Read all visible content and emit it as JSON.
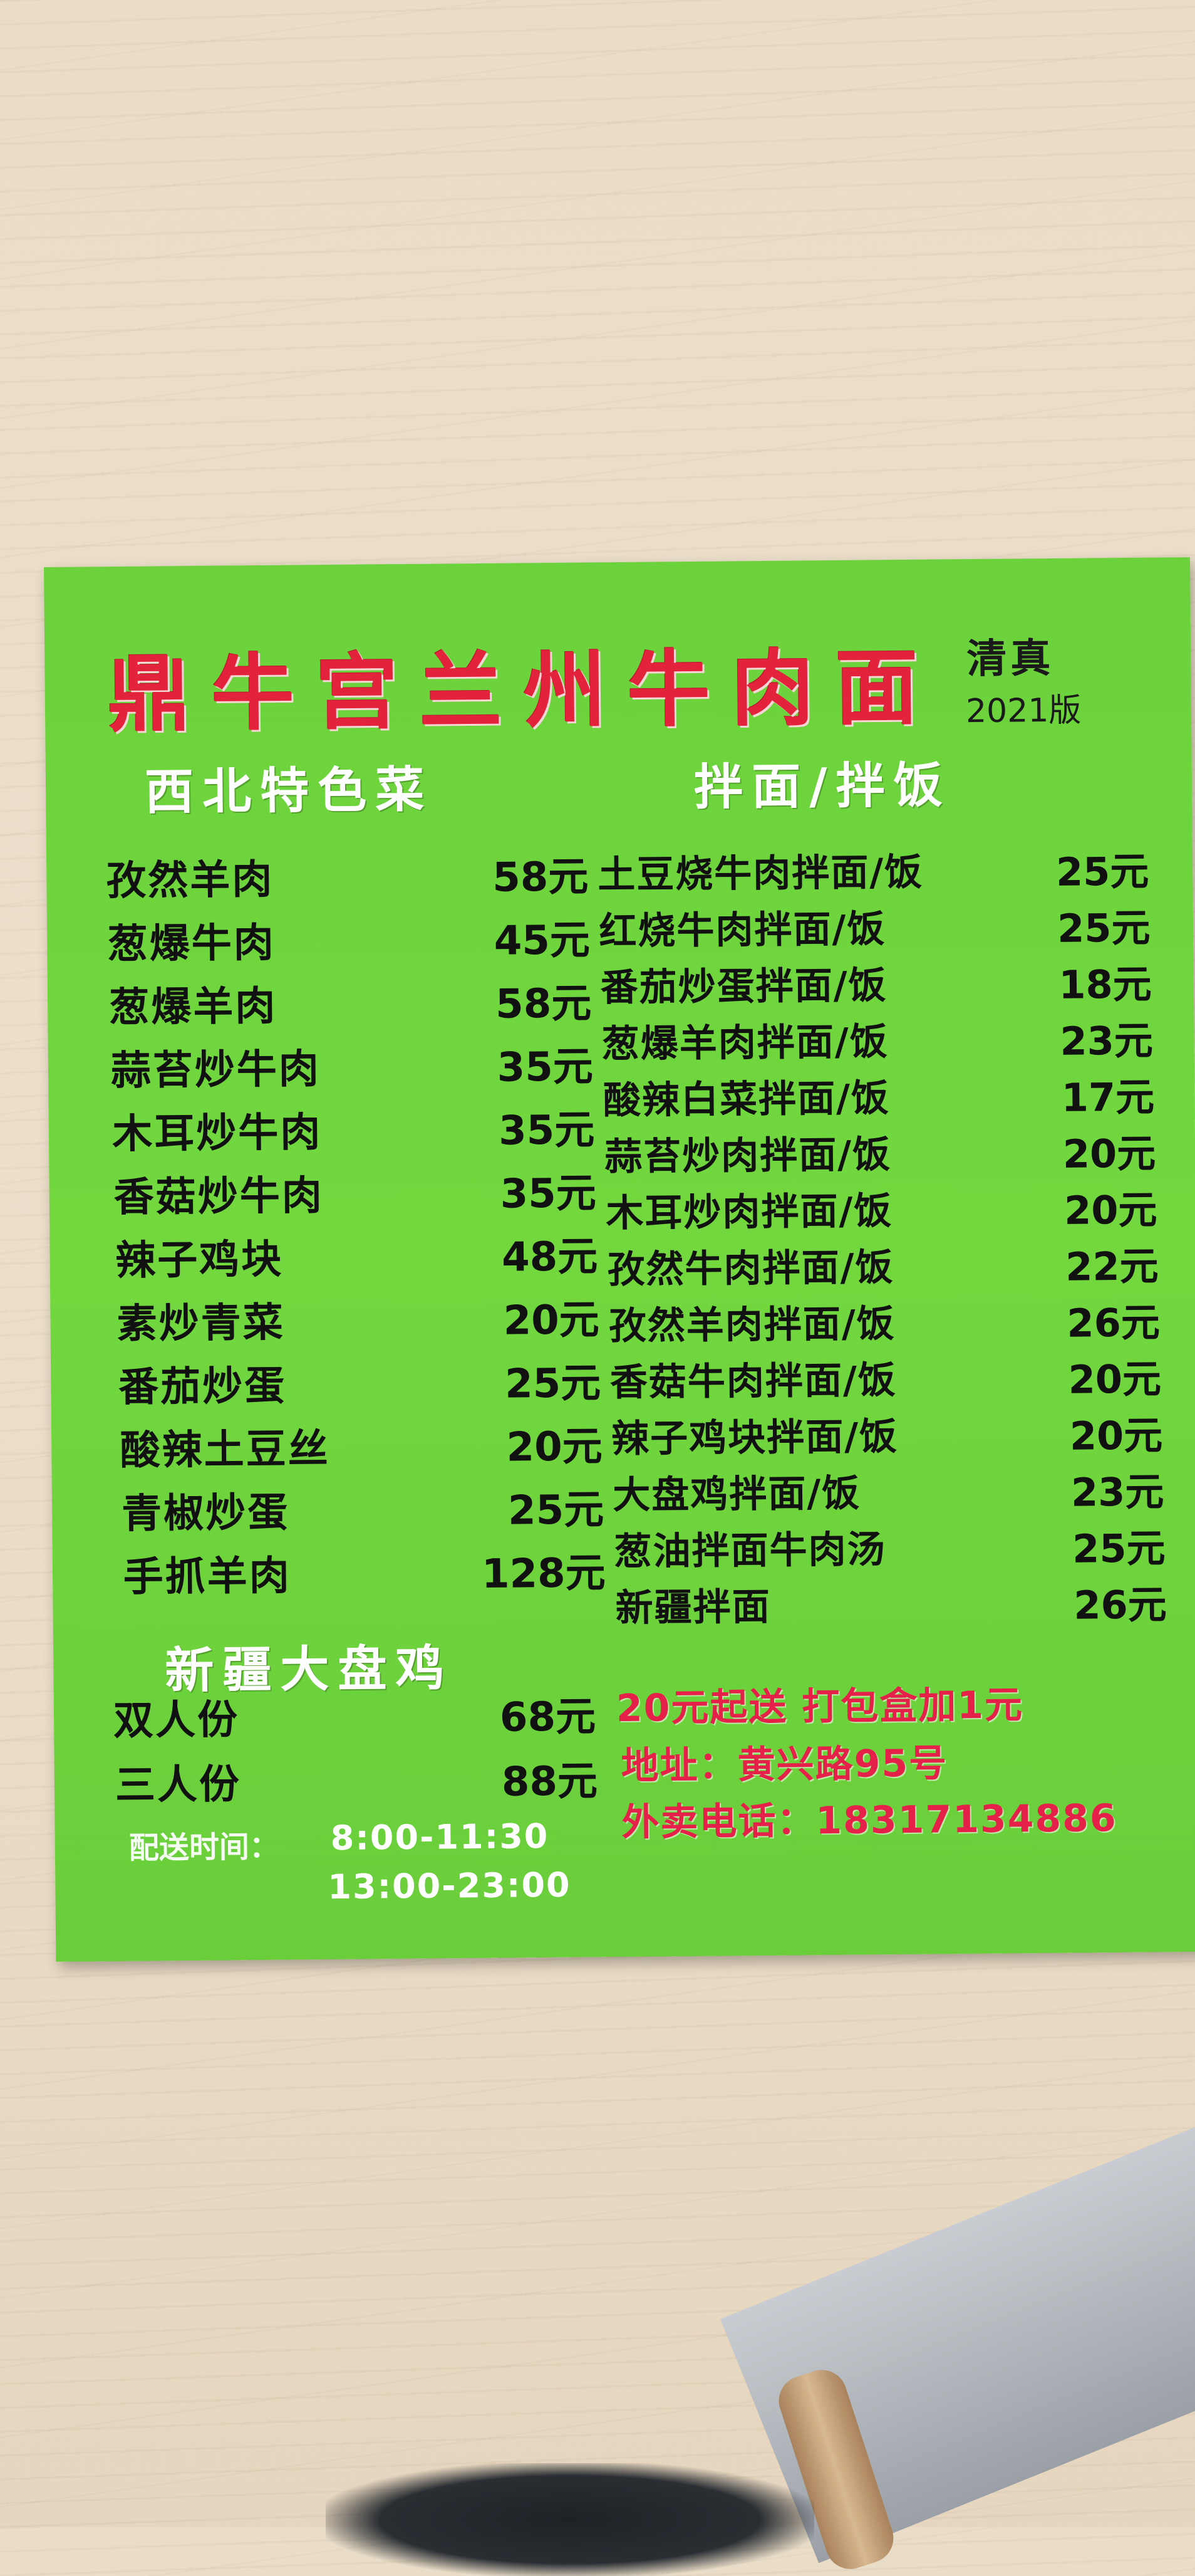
{
  "header": {
    "shop_name": "鼎牛宫兰州牛肉面",
    "halal": "清真",
    "edition": "2021版"
  },
  "left_section": {
    "title": "西北特色菜",
    "items": [
      {
        "name": "孜然羊肉",
        "price": "58元"
      },
      {
        "name": "葱爆牛肉",
        "price": "45元"
      },
      {
        "name": "葱爆羊肉",
        "price": "58元"
      },
      {
        "name": "蒜苔炒牛肉",
        "price": "35元"
      },
      {
        "name": "木耳炒牛肉",
        "price": "35元"
      },
      {
        "name": "香菇炒牛肉",
        "price": "35元"
      },
      {
        "name": "辣子鸡块",
        "price": "48元"
      },
      {
        "name": "素炒青菜",
        "price": "20元"
      },
      {
        "name": "番茄炒蛋",
        "price": "25元"
      },
      {
        "name": "酸辣土豆丝",
        "price": "20元"
      },
      {
        "name": "青椒炒蛋",
        "price": "25元"
      },
      {
        "name": "手抓羊肉",
        "price": "128元"
      }
    ]
  },
  "xinjiang_section": {
    "title": "新疆大盘鸡",
    "items": [
      {
        "name": "双人份",
        "price": "68元"
      },
      {
        "name": "三人份",
        "price": "88元"
      }
    ]
  },
  "right_section": {
    "title": "拌面/拌饭",
    "items": [
      {
        "name": "土豆烧牛肉拌面/饭",
        "price": "25元"
      },
      {
        "name": "红烧牛肉拌面/饭",
        "price": "25元"
      },
      {
        "name": "番茄炒蛋拌面/饭",
        "price": "18元"
      },
      {
        "name": "葱爆羊肉拌面/饭",
        "price": "23元"
      },
      {
        "name": "酸辣白菜拌面/饭",
        "price": "17元"
      },
      {
        "name": "蒜苔炒肉拌面/饭",
        "price": "20元"
      },
      {
        "name": "木耳炒肉拌面/饭",
        "price": "20元"
      },
      {
        "name": "孜然牛肉拌面/饭",
        "price": "22元"
      },
      {
        "name": "孜然羊肉拌面/饭",
        "price": "26元"
      },
      {
        "name": "香菇牛肉拌面/饭",
        "price": "20元"
      },
      {
        "name": "辣子鸡块拌面/饭",
        "price": "20元"
      },
      {
        "name": "大盘鸡拌面/饭",
        "price": "23元"
      },
      {
        "name": "葱油拌面牛肉汤",
        "price": "25元"
      },
      {
        "name": "新疆拌面",
        "price": "26元"
      }
    ]
  },
  "footer": {
    "delivery_note": "20元起送  打包盒加1元",
    "address": "地址：黄兴路95号",
    "phone": "外卖电话：18317134886",
    "delivery_hours_label": "配送时间：",
    "delivery_hours": [
      "8:00-11:30",
      "13:00-23:00"
    ]
  },
  "colors": {
    "card_green": "#6cd23c",
    "title_red": "#e3223b",
    "info_red": "#e5214a",
    "section_white": "#ffffff",
    "item_black": "#111111"
  }
}
